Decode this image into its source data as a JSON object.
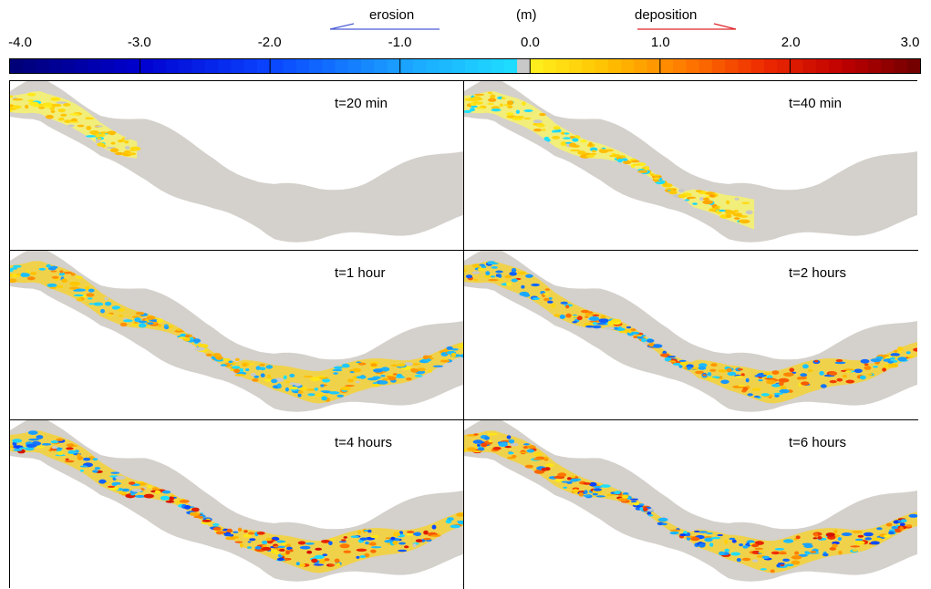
{
  "legend": {
    "erosion_label": "erosion",
    "unit_label": "(m)",
    "deposition_label": "deposition",
    "ticks": [
      "-4.0",
      "-3.0",
      "-2.0",
      "-1.0",
      "0.0",
      "1.0",
      "2.0",
      "3.0"
    ],
    "range": [
      -4.0,
      3.0
    ],
    "erosion_arrow_color": "#4a5bd6",
    "deposition_arrow_color": "#e0262b"
  },
  "panels": [
    {
      "title": "t=20 min",
      "extent": 0.28
    },
    {
      "title": "t=40 min",
      "extent": 0.64
    },
    {
      "title": "t=1 hour",
      "extent": 1.0
    },
    {
      "title": "t=2 hours",
      "extent": 1.0
    },
    {
      "title": "t=4 hours",
      "extent": 1.0
    },
    {
      "title": "t=6 hours",
      "extent": 1.0
    }
  ],
  "colors": {
    "floodplain": "#d4d0cb",
    "colormap": [
      "#000074",
      "#0000d0",
      "#0a44ff",
      "#1aa0ff",
      "#1fe6ff",
      "#c8c8c8",
      "#fff21e",
      "#ffc000",
      "#ff7a00",
      "#ee2a00",
      "#c00000",
      "#6e0000"
    ]
  }
}
